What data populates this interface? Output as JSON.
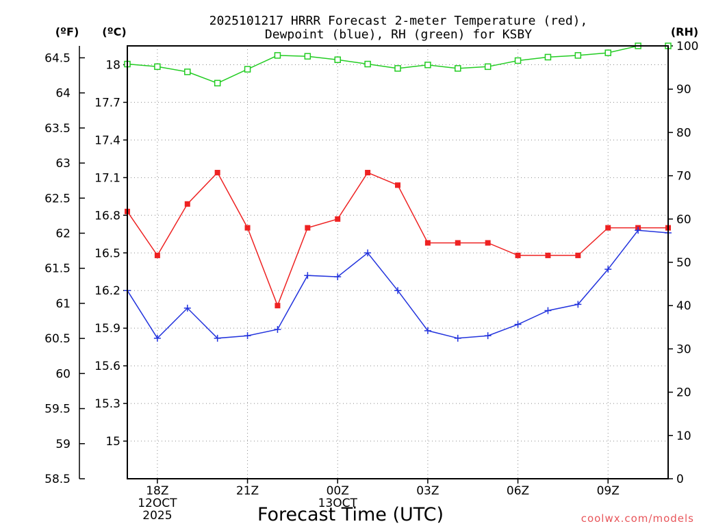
{
  "chart_data": {
    "type": "line",
    "title_line1": "2025101217 HRRR Forecast 2-meter Temperature (red),",
    "title_line2": "Dewpoint (blue), RH (green) for KSBY",
    "xlabel": "Forecast Time (UTC)",
    "unit_labels": {
      "fahrenheit": "(ºF)",
      "celsius": "(ºC)",
      "rh": "(RH)"
    },
    "credit": "coolwx.com/models",
    "x_range": [
      17,
      35
    ],
    "x_ticks": [
      {
        "x": 18,
        "lines": [
          "18Z",
          "12OCT",
          "2025"
        ]
      },
      {
        "x": 21,
        "lines": [
          "21Z"
        ]
      },
      {
        "x": 24,
        "lines": [
          "00Z",
          "13OCT"
        ]
      },
      {
        "x": 27,
        "lines": [
          "03Z"
        ]
      },
      {
        "x": 30,
        "lines": [
          "06Z"
        ]
      },
      {
        "x": 33,
        "lines": [
          "09Z"
        ]
      }
    ],
    "y_celsius": {
      "range": [
        14.7,
        18.15
      ],
      "ticks": [
        15,
        15.3,
        15.6,
        15.9,
        16.2,
        16.5,
        16.8,
        17.1,
        17.4,
        17.7,
        18
      ]
    },
    "y_fahrenheit": {
      "range": [
        58.5,
        64.67
      ],
      "ticks": [
        58.5,
        59,
        59.5,
        60,
        60.5,
        61,
        61.5,
        62,
        62.5,
        63,
        63.5,
        64,
        64.5
      ]
    },
    "y_rh": {
      "range": [
        0,
        100
      ],
      "ticks": [
        0,
        10,
        20,
        30,
        40,
        50,
        60,
        70,
        80,
        90,
        100
      ]
    },
    "grid": true,
    "x": [
      17,
      18,
      19,
      20,
      21,
      22,
      23,
      24,
      25,
      26,
      27,
      28,
      29,
      30,
      31,
      32,
      33,
      34,
      35
    ],
    "series": [
      {
        "axis": "celsius",
        "color": "#ee2222",
        "marker": "filled-square",
        "values": [
          16.83,
          16.48,
          16.89,
          17.14,
          16.7,
          16.08,
          16.7,
          16.77,
          17.14,
          17.04,
          16.58,
          16.58,
          16.58,
          16.48,
          16.48,
          16.48,
          16.7,
          16.7,
          16.7
        ]
      },
      {
        "axis": "celsius",
        "color": "#2233dd",
        "marker": "plus",
        "values": [
          16.2,
          15.82,
          16.06,
          15.82,
          15.84,
          15.89,
          16.32,
          16.31,
          16.5,
          16.2,
          15.88,
          15.82,
          15.84,
          15.93,
          16.04,
          16.09,
          16.37,
          16.68,
          16.66
        ]
      },
      {
        "axis": "rh",
        "color": "#22cc22",
        "marker": "open-square",
        "values": [
          95.8,
          95.2,
          94,
          91.4,
          94.6,
          97.8,
          97.6,
          96.8,
          95.8,
          94.8,
          95.6,
          94.8,
          95.2,
          96.6,
          97.4,
          97.8,
          98.4,
          100,
          100
        ]
      }
    ]
  }
}
